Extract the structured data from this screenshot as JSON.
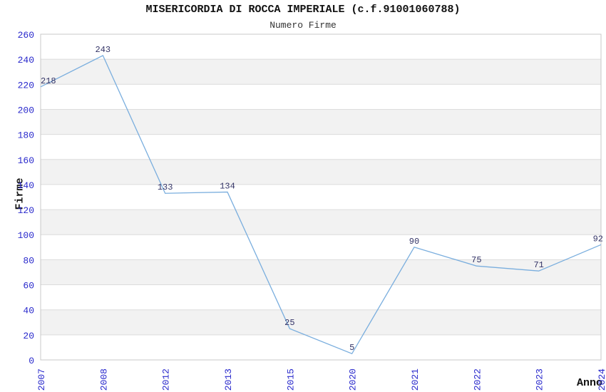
{
  "chart_data": {
    "type": "line",
    "title": "MISERICORDIA DI ROCCA IMPERIALE (c.f.91001060788)",
    "subtitle": "Numero Firme",
    "xlabel": "Anno",
    "ylabel": "Firme",
    "categories": [
      "2007",
      "2008",
      "2012",
      "2013",
      "2015",
      "2020",
      "2021",
      "2022",
      "2023",
      "2024"
    ],
    "values": [
      218,
      243,
      133,
      134,
      25,
      5,
      90,
      75,
      71,
      92
    ],
    "ylim": [
      0,
      260
    ],
    "ytick_step": 20,
    "grid": "horizontal",
    "banded_background": true,
    "legend": "none",
    "x_tick_rotation": -90
  },
  "colors": {
    "line": "#7aaede",
    "band": "#f2f2f2",
    "grid": "#dcdcdc",
    "frame": "#c8c8c8",
    "tick_label": "#2929cc",
    "value_label": "#333366",
    "title": "#111111",
    "subtitle": "#333333",
    "axis_title": "#111111",
    "background": "#ffffff"
  }
}
